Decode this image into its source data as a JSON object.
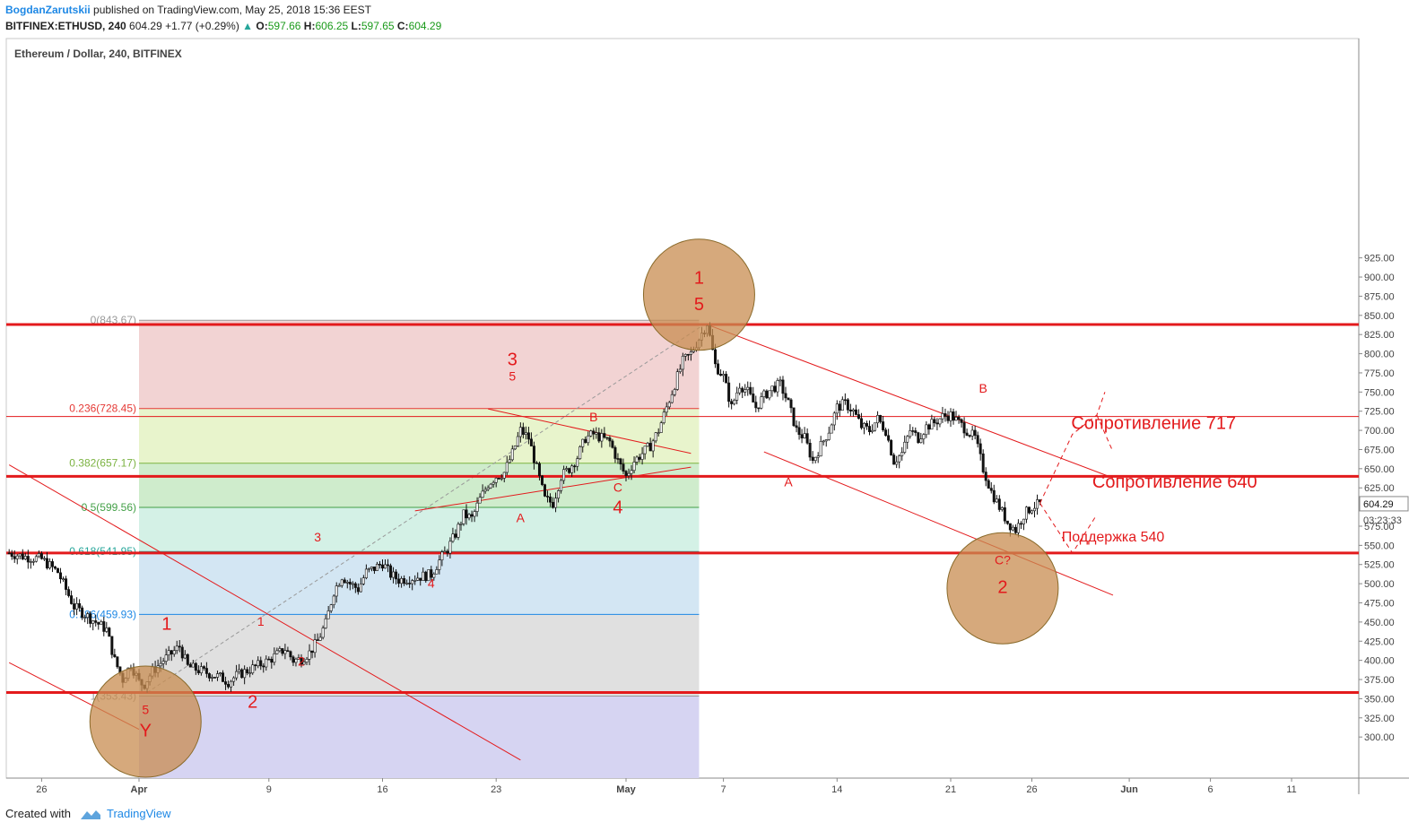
{
  "header": {
    "author": "BogdanZarutskii",
    "published": "published on TradingView.com, May 25, 2018 15:36 EEST",
    "symbol": "BITFINEX:ETHUSD, 240",
    "last": "604.29",
    "change": "+1.77 (+0.29%)",
    "o_label": "O:",
    "o": "597.66",
    "h_label": "H:",
    "h": "606.25",
    "l_label": "L:",
    "l": "597.65",
    "c_label": "C:",
    "c": "604.29"
  },
  "footer": {
    "created_with": "Created with",
    "brand": "TradingView"
  },
  "chart_data": {
    "type": "candlestick",
    "title": "Ethereum / Dollar, 240, BITFINEX",
    "ylim": [
      275,
      935
    ],
    "y_ticks": [
      "300.00",
      "325.00",
      "350.00",
      "375.00",
      "400.00",
      "425.00",
      "450.00",
      "475.00",
      "500.00",
      "525.00",
      "550.00",
      "575.00",
      "600.00",
      "625.00",
      "650.00",
      "675.00",
      "700.00",
      "725.00",
      "750.00",
      "775.00",
      "800.00",
      "825.00",
      "850.00",
      "875.00",
      "900.00",
      "925.00"
    ],
    "x_ticks": [
      {
        "label": "26",
        "day": -6
      },
      {
        "label": "Apr",
        "day": 0
      },
      {
        "label": "9",
        "day": 8
      },
      {
        "label": "16",
        "day": 15
      },
      {
        "label": "23",
        "day": 22
      },
      {
        "label": "May",
        "day": 30
      },
      {
        "label": "7",
        "day": 36
      },
      {
        "label": "14",
        "day": 43
      },
      {
        "label": "21",
        "day": 50
      },
      {
        "label": "26",
        "day": 55
      },
      {
        "label": "Jun",
        "day": 61
      },
      {
        "label": "6",
        "day": 66
      },
      {
        "label": "11",
        "day": 71
      }
    ],
    "last_price": "604.29",
    "countdown": "03:23:33",
    "price_path": [
      [
        -8,
        540
      ],
      [
        -7,
        535
      ],
      [
        -6,
        532
      ],
      [
        -5,
        515
      ],
      [
        -4,
        470
      ],
      [
        -3,
        455
      ],
      [
        -2,
        440
      ],
      [
        -1.5,
        400
      ],
      [
        -1,
        375
      ],
      [
        -0.5,
        395
      ],
      [
        0,
        372
      ],
      [
        0.3,
        368
      ],
      [
        0.8,
        385
      ],
      [
        1.5,
        400
      ],
      [
        2.5,
        418
      ],
      [
        3,
        392
      ],
      [
        4,
        385
      ],
      [
        5,
        378
      ],
      [
        5.5,
        372
      ],
      [
        6,
        380
      ],
      [
        7,
        390
      ],
      [
        8,
        400
      ],
      [
        9,
        415
      ],
      [
        9.5,
        400
      ],
      [
        10,
        402
      ],
      [
        10.5,
        410
      ],
      [
        11,
        425
      ],
      [
        11.5,
        448
      ],
      [
        12,
        490
      ],
      [
        12.5,
        510
      ],
      [
        13,
        500
      ],
      [
        13.5,
        493
      ],
      [
        14,
        515
      ],
      [
        14.5,
        520
      ],
      [
        15,
        527
      ],
      [
        15.5,
        512
      ],
      [
        16,
        505
      ],
      [
        17,
        508
      ],
      [
        18,
        512
      ],
      [
        18.5,
        530
      ],
      [
        19,
        545
      ],
      [
        19.5,
        565
      ],
      [
        20,
        590
      ],
      [
        20.5,
        585
      ],
      [
        21,
        610
      ],
      [
        21.5,
        630
      ],
      [
        22,
        640
      ],
      [
        22.5,
        645
      ],
      [
        23,
        670
      ],
      [
        23.5,
        700
      ],
      [
        24,
        690
      ],
      [
        24.5,
        650
      ],
      [
        25,
        610
      ],
      [
        25.5,
        605
      ],
      [
        26,
        640
      ],
      [
        26.5,
        650
      ],
      [
        27,
        665
      ],
      [
        27.5,
        690
      ],
      [
        28,
        695
      ],
      [
        28.5,
        690
      ],
      [
        29,
        685
      ],
      [
        29.5,
        660
      ],
      [
        30,
        640
      ],
      [
        30.5,
        660
      ],
      [
        31,
        670
      ],
      [
        31.5,
        680
      ],
      [
        32,
        700
      ],
      [
        32.5,
        730
      ],
      [
        33,
        760
      ],
      [
        33.5,
        790
      ],
      [
        34,
        800
      ],
      [
        34.5,
        820
      ],
      [
        35,
        840
      ],
      [
        35.5,
        785
      ],
      [
        36,
        770
      ],
      [
        36.5,
        730
      ],
      [
        37,
        760
      ],
      [
        37.5,
        750
      ],
      [
        38,
        730
      ],
      [
        38.5,
        745
      ],
      [
        39,
        755
      ],
      [
        39.5,
        760
      ],
      [
        40,
        735
      ],
      [
        40.5,
        700
      ],
      [
        41,
        690
      ],
      [
        41.5,
        660
      ],
      [
        42,
        680
      ],
      [
        42.5,
        700
      ],
      [
        43,
        730
      ],
      [
        43.5,
        735
      ],
      [
        44,
        725
      ],
      [
        44.5,
        705
      ],
      [
        45,
        700
      ],
      [
        45.5,
        715
      ],
      [
        46,
        700
      ],
      [
        46.5,
        660
      ],
      [
        47,
        670
      ],
      [
        47.5,
        700
      ],
      [
        48,
        690
      ],
      [
        48.5,
        705
      ],
      [
        49,
        710
      ],
      [
        49.5,
        718
      ],
      [
        50,
        720
      ],
      [
        50.5,
        710
      ],
      [
        51,
        700
      ],
      [
        51.5,
        690
      ],
      [
        52,
        650
      ],
      [
        52.5,
        620
      ],
      [
        53,
        600
      ],
      [
        53.5,
        580
      ],
      [
        54,
        570
      ],
      [
        54.5,
        590
      ],
      [
        55,
        600
      ],
      [
        55.5,
        604
      ]
    ],
    "fib_levels": [
      {
        "ratio": "0",
        "label": "0(843.67)",
        "price": 843.67,
        "color": "#999999",
        "fill": "#f2d3d3"
      },
      {
        "ratio": "0.236",
        "label": "0.236(728.45)",
        "price": 728.45,
        "color": "#e53935",
        "fill": "#e8f4cc"
      },
      {
        "ratio": "0.382",
        "label": "0.382(657.17)",
        "price": 657.17,
        "color": "#7cb342",
        "fill": "#cfeccc"
      },
      {
        "ratio": "0.5",
        "label": "0.5(599.56)",
        "price": 599.56,
        "color": "#43a047",
        "fill": "#d4f1e6"
      },
      {
        "ratio": "0.618",
        "label": "0.618(541.95)",
        "price": 541.95,
        "color": "#26a69a",
        "fill": "#d3e6f3"
      },
      {
        "ratio": "0.786",
        "label": "0.786(459.93)",
        "price": 459.93,
        "color": "#1e88e5",
        "fill": "#e0e0e0"
      },
      {
        "ratio": "1",
        "label": "1(353.43)",
        "price": 353.43,
        "color": "#999999",
        "fill": "#d6d4f2"
      }
    ],
    "fib_x_range": [
      0,
      34.5
    ],
    "horizontal_levels": [
      {
        "price": 838,
        "weight": "heavy"
      },
      {
        "price": 718,
        "weight": "thin"
      },
      {
        "price": 640,
        "weight": "heavy"
      },
      {
        "price": 540,
        "weight": "heavy"
      },
      {
        "price": 358,
        "weight": "heavy"
      }
    ],
    "trend_lines": [
      [
        [
          -8,
          655
        ],
        [
          23.5,
          270
        ]
      ],
      [
        [
          -8,
          397
        ],
        [
          0,
          310
        ]
      ],
      [
        [
          21.5,
          728
        ],
        [
          34,
          670
        ]
      ],
      [
        [
          17,
          595
        ],
        [
          34,
          652
        ]
      ],
      [
        [
          35,
          838
        ],
        [
          60,
          638
        ]
      ],
      [
        [
          38.5,
          672
        ],
        [
          60,
          485
        ]
      ]
    ],
    "projection_path": [
      [
        55.5,
        605
      ],
      [
        57.5,
        695
      ],
      [
        59,
        720
      ],
      [
        59.5,
        750
      ]
    ],
    "projection_branch1": [
      [
        59,
        720
      ],
      [
        60,
        672
      ]
    ],
    "projection_branch2": [
      [
        55.5,
        605
      ],
      [
        57.5,
        540
      ],
      [
        59,
        590
      ]
    ],
    "wave_labels": [
      {
        "text": "1",
        "day": 34.5,
        "price": 891,
        "size": "big"
      },
      {
        "text": "5",
        "day": 34.5,
        "price": 857,
        "size": "big"
      },
      {
        "text": "3",
        "day": 23,
        "price": 785,
        "size": "big"
      },
      {
        "text": "5",
        "day": 23,
        "price": 765,
        "size": "small"
      },
      {
        "text": "B",
        "day": 28,
        "price": 712,
        "size": "small"
      },
      {
        "text": "A",
        "day": 23.5,
        "price": 580,
        "size": "small"
      },
      {
        "text": "C",
        "day": 29.5,
        "price": 620,
        "size": "small"
      },
      {
        "text": "4",
        "day": 29.5,
        "price": 592,
        "size": "big"
      },
      {
        "text": "3",
        "day": 11,
        "price": 555,
        "size": "small"
      },
      {
        "text": "4",
        "day": 18,
        "price": 495,
        "size": "small"
      },
      {
        "text": "1",
        "day": 1.7,
        "price": 440,
        "size": "big"
      },
      {
        "text": "1",
        "day": 7.5,
        "price": 445,
        "size": "small"
      },
      {
        "text": "2",
        "day": 10,
        "price": 393,
        "size": "small"
      },
      {
        "text": "2",
        "day": 7,
        "price": 338,
        "size": "big"
      },
      {
        "text": "5",
        "day": 0.4,
        "price": 330,
        "size": "small"
      },
      {
        "text": "Y",
        "day": 0.4,
        "price": 301,
        "size": "big"
      },
      {
        "text": "A",
        "day": 40,
        "price": 627,
        "size": "small"
      },
      {
        "text": "B",
        "day": 52,
        "price": 749,
        "size": "small"
      },
      {
        "text": "C?",
        "day": 53.2,
        "price": 525,
        "size": "small"
      },
      {
        "text": "2",
        "day": 53.2,
        "price": 488,
        "size": "big"
      }
    ],
    "circles": [
      {
        "day": 34.5,
        "price": 877
      },
      {
        "day": 53.2,
        "price": 494
      },
      {
        "day": 0.4,
        "price": 320
      }
    ],
    "annotations": [
      {
        "text": "Сопротивление 717",
        "day": 62.5,
        "price": 702,
        "size": "large"
      },
      {
        "text": "Сопротивление 640",
        "day": 63.8,
        "price": 625,
        "size": "large"
      },
      {
        "text": "Поддержка 540",
        "day": 60,
        "price": 555,
        "size": "medium"
      }
    ]
  }
}
